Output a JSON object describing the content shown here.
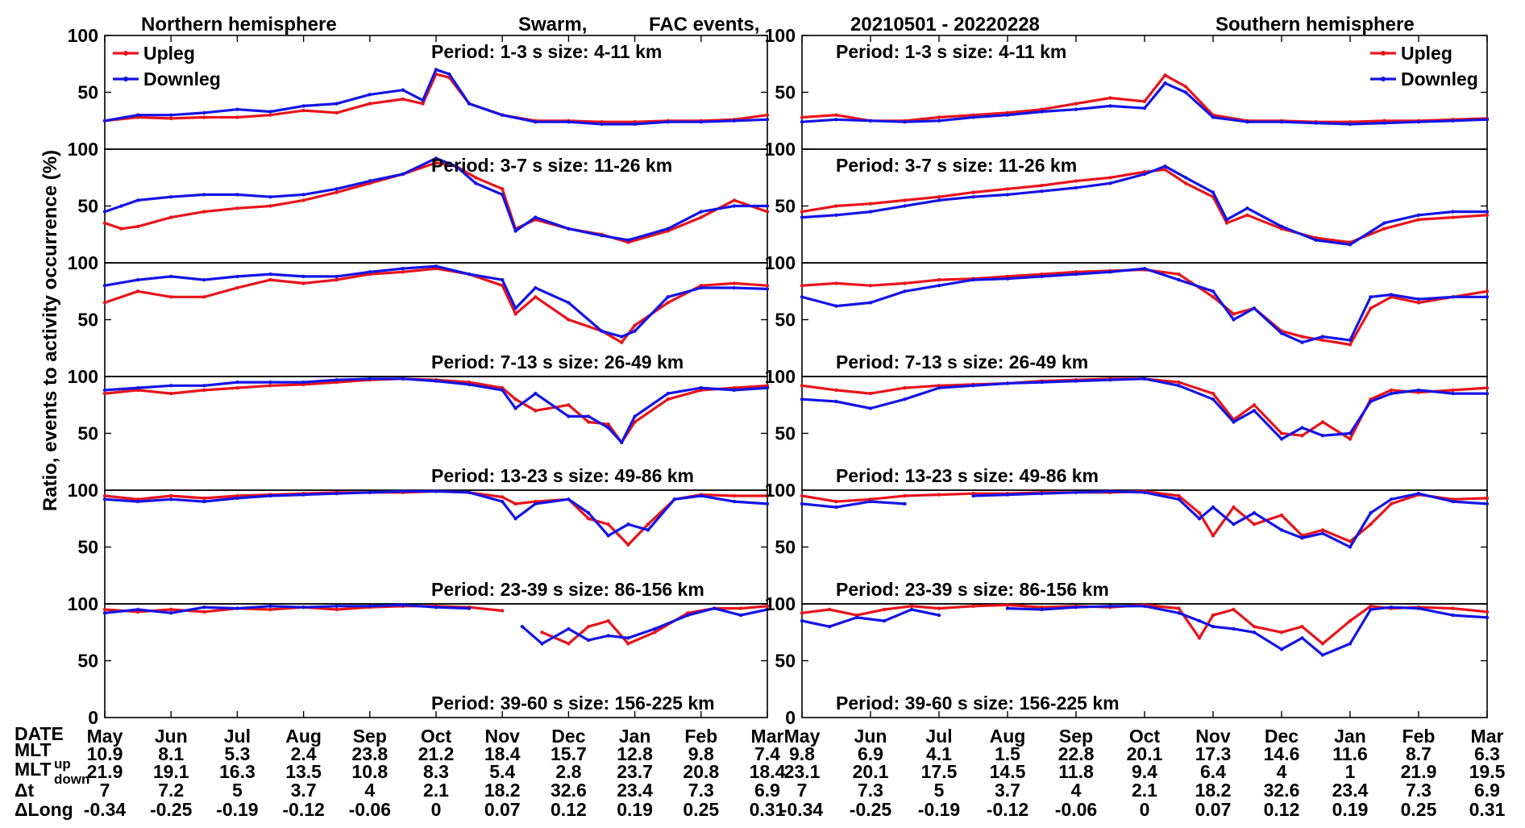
{
  "header": {
    "north_title": "Northern hemisphere",
    "mission": "Swarm,",
    "event_type": "FAC events,",
    "date_range": "20210501 - 20220228",
    "south_title": "Southern hemisphere"
  },
  "ylabel": "Ratio, events to activity occurrence (%)",
  "legend": {
    "upleg": "Upleg",
    "downleg": "Downleg"
  },
  "colors": {
    "upleg": "#e8141b",
    "downleg": "#1414e6",
    "axis": "#000000"
  },
  "ticks": {
    "y_main": [
      "100",
      "50"
    ],
    "y_zero": "0"
  },
  "bottom": {
    "row_labels": [
      "DATE",
      "MLT",
      "MLT",
      "up",
      "down",
      "Δt",
      "ΔLong"
    ],
    "months": [
      "May",
      "Jun",
      "Jul",
      "Aug",
      "Sep",
      "Oct",
      "Nov",
      "Dec",
      "Jan",
      "Feb",
      "Mar"
    ],
    "north": {
      "mlt_up": [
        "10.9",
        "8.1",
        "5.3",
        "2.4",
        "23.8",
        "21.2",
        "18.4",
        "15.7",
        "12.8",
        "9.8",
        "7.4"
      ],
      "mlt_down": [
        "21.9",
        "19.1",
        "16.3",
        "13.5",
        "10.8",
        "8.3",
        "5.4",
        "2.8",
        "23.7",
        "20.8",
        "18.4"
      ],
      "dt": [
        "7",
        "7.2",
        "5",
        "3.7",
        "4",
        "2.1",
        "18.2",
        "32.6",
        "23.4",
        "7.3",
        "6.9"
      ],
      "dlong": [
        "-0.34",
        "-0.25",
        "-0.19",
        "-0.12",
        "-0.06",
        "0",
        "0.07",
        "0.12",
        "0.19",
        "0.25",
        "0.31"
      ]
    },
    "south": {
      "mlt_up": [
        "9.8",
        "6.9",
        "4.1",
        "1.5",
        "22.8",
        "20.1",
        "17.3",
        "14.6",
        "11.6",
        "8.7",
        "6.3"
      ],
      "mlt_down": [
        "23.1",
        "20.1",
        "17.5",
        "14.5",
        "11.8",
        "9.4",
        "6.4",
        "4",
        "1",
        "21.9",
        "19.5"
      ],
      "dt": [
        "7",
        "7.3",
        "5",
        "3.7",
        "4",
        "2.1",
        "18.2",
        "32.6",
        "23.4",
        "7.3",
        "6.9"
      ],
      "dlong": [
        "-0.34",
        "-0.25",
        "-0.19",
        "-0.12",
        "-0.06",
        "0",
        "0.07",
        "0.12",
        "0.19",
        "0.25",
        "0.31"
      ]
    }
  },
  "chart_data": {
    "type": "line",
    "x_unit": "months since 2021-05-01 (0 = May 2021, 10 = Mar 2022)",
    "xlim": [
      0,
      10
    ],
    "ylim": [
      0,
      100
    ],
    "title": "Swarm, FAC events, 20210501 - 20220228",
    "xlabel": "DATE",
    "ylabel": "Ratio, events to activity occurrence (%)",
    "legend_north": "top-left",
    "legend_south": "top-right",
    "panels": [
      {
        "hemisphere": "north",
        "label": "Period: 1-3 s   size: 4-11 km",
        "label_pos": "top",
        "x": [
          0,
          0.5,
          1,
          1.5,
          2,
          2.5,
          3,
          3.5,
          4,
          4.5,
          4.8,
          5,
          5.2,
          5.5,
          6,
          6.5,
          7,
          7.5,
          8,
          8.5,
          9,
          9.5,
          10
        ],
        "upleg": [
          25,
          28,
          27,
          28,
          28,
          30,
          34,
          32,
          40,
          44,
          40,
          66,
          63,
          40,
          30,
          25,
          25,
          24,
          24,
          25,
          25,
          26,
          30
        ],
        "downleg": [
          25,
          30,
          30,
          32,
          35,
          33,
          38,
          40,
          48,
          52,
          43,
          70,
          66,
          40,
          30,
          24,
          24,
          22,
          22,
          24,
          24,
          25,
          26
        ]
      },
      {
        "hemisphere": "north",
        "label": "Period: 3-7 s   size: 11-26 km",
        "label_pos": "top",
        "x": [
          0,
          0.25,
          0.5,
          1,
          1.5,
          2,
          2.5,
          3,
          3.5,
          4,
          4.5,
          5,
          5.3,
          5.6,
          6,
          6.2,
          6.5,
          7,
          7.5,
          7.9,
          8.5,
          9,
          9.5,
          10
        ],
        "upleg": [
          35,
          30,
          32,
          40,
          45,
          48,
          50,
          55,
          62,
          70,
          78,
          88,
          85,
          75,
          65,
          30,
          38,
          30,
          25,
          18,
          28,
          40,
          55,
          45
        ],
        "downleg": [
          45,
          50,
          55,
          58,
          60,
          60,
          58,
          60,
          65,
          72,
          78,
          92,
          85,
          70,
          60,
          28,
          40,
          30,
          24,
          20,
          30,
          45,
          50,
          50
        ]
      },
      {
        "hemisphere": "north",
        "label": "Period: 7-13 s   size: 26-49 km",
        "label_pos": "bottom",
        "x": [
          0,
          0.5,
          1,
          1.5,
          2,
          2.5,
          3,
          3.5,
          4,
          4.5,
          5,
          5.5,
          6,
          6.2,
          6.5,
          7,
          7.5,
          7.8,
          8,
          8.5,
          9,
          9.5,
          10
        ],
        "upleg": [
          65,
          75,
          70,
          70,
          78,
          85,
          82,
          85,
          90,
          92,
          95,
          90,
          80,
          55,
          70,
          50,
          40,
          30,
          45,
          65,
          80,
          82,
          80
        ],
        "downleg": [
          80,
          85,
          88,
          85,
          88,
          90,
          88,
          88,
          92,
          95,
          97,
          90,
          85,
          60,
          78,
          65,
          40,
          35,
          40,
          70,
          78,
          78,
          77
        ]
      },
      {
        "hemisphere": "north",
        "label": "Period: 13-23 s   size: 49-86 km",
        "label_pos": "bottom",
        "x": [
          0,
          0.5,
          1,
          1.5,
          2,
          2.5,
          3,
          3.5,
          4,
          4.5,
          5,
          5.5,
          6,
          6.2,
          6.5,
          7,
          7.3,
          7.6,
          7.8,
          8,
          8.5,
          9,
          9.5,
          10
        ],
        "upleg": [
          85,
          88,
          85,
          88,
          90,
          92,
          93,
          95,
          97,
          98,
          97,
          95,
          90,
          80,
          70,
          75,
          60,
          58,
          42,
          60,
          80,
          88,
          90,
          92
        ],
        "downleg": [
          88,
          90,
          92,
          92,
          95,
          95,
          95,
          97,
          98,
          98,
          96,
          93,
          88,
          72,
          85,
          65,
          65,
          55,
          42,
          65,
          85,
          90,
          88,
          90
        ]
      },
      {
        "hemisphere": "north",
        "label": "Period: 23-39 s   size: 86-156 km",
        "label_pos": "bottom",
        "x": [
          0,
          0.5,
          1,
          1.5,
          2,
          2.5,
          3,
          3.5,
          4,
          4.5,
          5,
          5.5,
          6,
          6.2,
          6.5,
          7,
          7.3,
          7.6,
          7.9,
          8.2,
          8.6,
          9,
          9.5,
          10
        ],
        "upleg": [
          95,
          92,
          95,
          93,
          95,
          96,
          97,
          98,
          98,
          98,
          99,
          98,
          94,
          88,
          90,
          92,
          75,
          70,
          52,
          70,
          92,
          96,
          95,
          95
        ],
        "downleg": [
          92,
          90,
          92,
          90,
          93,
          95,
          96,
          97,
          98,
          99,
          99,
          98,
          90,
          75,
          88,
          92,
          80,
          60,
          70,
          65,
          92,
          95,
          90,
          88
        ]
      },
      {
        "hemisphere": "north",
        "label": "Period: 39-60 s   size: 156-225 km",
        "label_pos": "bottom",
        "x": [
          0,
          0.5,
          1,
          1.5,
          2,
          2.5,
          3,
          3.5,
          4,
          4.5,
          5,
          5.5,
          6,
          6.3,
          6.6,
          7,
          7.3,
          7.6,
          7.9,
          8.3,
          8.8,
          9.2,
          9.6,
          10
        ],
        "upleg": [
          95,
          93,
          95,
          93,
          96,
          95,
          97,
          95,
          97,
          98,
          98,
          97,
          94,
          null,
          75,
          65,
          80,
          85,
          65,
          75,
          92,
          96,
          96,
          98
        ],
        "downleg": [
          92,
          95,
          92,
          97,
          96,
          98,
          97,
          98,
          98,
          99,
          97,
          96,
          null,
          80,
          65,
          78,
          68,
          72,
          70,
          78,
          90,
          96,
          90,
          95
        ]
      },
      {
        "hemisphere": "south",
        "label": "Period: 1-3 s   size: 4-11 km",
        "label_pos": "top",
        "x": [
          0,
          0.5,
          1,
          1.5,
          2,
          2.5,
          3,
          3.5,
          4,
          4.5,
          5,
          5.3,
          5.6,
          6,
          6.5,
          7,
          7.5,
          8,
          8.5,
          9,
          9.5,
          10
        ],
        "upleg": [
          28,
          30,
          25,
          25,
          28,
          30,
          32,
          35,
          40,
          45,
          42,
          65,
          55,
          30,
          25,
          25,
          24,
          24,
          25,
          25,
          26,
          27
        ],
        "downleg": [
          24,
          26,
          25,
          24,
          25,
          28,
          30,
          33,
          35,
          38,
          36,
          58,
          50,
          28,
          24,
          24,
          23,
          22,
          23,
          24,
          25,
          26
        ]
      },
      {
        "hemisphere": "south",
        "label": "Period: 3-7 s   size: 11-26 km",
        "label_pos": "top",
        "x": [
          0,
          0.5,
          1,
          1.5,
          2,
          2.5,
          3,
          3.5,
          4,
          4.5,
          5,
          5.3,
          5.6,
          6,
          6.2,
          6.5,
          7,
          7.5,
          8,
          8.5,
          9,
          9.5,
          10
        ],
        "upleg": [
          45,
          50,
          52,
          55,
          58,
          62,
          65,
          68,
          72,
          75,
          80,
          82,
          70,
          58,
          35,
          42,
          30,
          22,
          18,
          30,
          38,
          40,
          42
        ],
        "downleg": [
          40,
          42,
          45,
          50,
          55,
          58,
          60,
          63,
          66,
          70,
          78,
          85,
          75,
          62,
          38,
          48,
          32,
          20,
          16,
          35,
          42,
          45,
          45
        ]
      },
      {
        "hemisphere": "south",
        "label": "Period: 7-13 s   size: 26-49 km",
        "label_pos": "bottom",
        "x": [
          0,
          0.5,
          1,
          1.5,
          2,
          2.5,
          3,
          3.5,
          4,
          4.5,
          5,
          5.5,
          6,
          6.3,
          6.6,
          7,
          7.3,
          7.6,
          8,
          8.3,
          8.6,
          9,
          9.5,
          10
        ],
        "upleg": [
          80,
          82,
          80,
          82,
          85,
          86,
          88,
          90,
          92,
          93,
          94,
          90,
          70,
          55,
          60,
          40,
          35,
          32,
          28,
          60,
          70,
          65,
          70,
          75
        ],
        "downleg": [
          70,
          62,
          65,
          75,
          80,
          85,
          86,
          88,
          90,
          92,
          95,
          85,
          75,
          50,
          60,
          38,
          30,
          35,
          32,
          70,
          72,
          68,
          70,
          70
        ]
      },
      {
        "hemisphere": "south",
        "label": "Period: 13-23 s   size: 49-86 km",
        "label_pos": "bottom",
        "x": [
          0,
          0.5,
          1,
          1.5,
          2,
          2.5,
          3,
          3.5,
          4,
          4.5,
          5,
          5.5,
          6,
          6.3,
          6.6,
          7,
          7.3,
          7.6,
          8,
          8.3,
          8.6,
          9,
          9.5,
          10
        ],
        "upleg": [
          92,
          88,
          85,
          90,
          92,
          93,
          94,
          96,
          97,
          98,
          98,
          95,
          85,
          62,
          75,
          50,
          48,
          60,
          45,
          80,
          88,
          86,
          88,
          90
        ],
        "downleg": [
          80,
          78,
          72,
          80,
          90,
          92,
          94,
          95,
          96,
          97,
          98,
          92,
          80,
          60,
          70,
          45,
          55,
          48,
          50,
          78,
          85,
          88,
          85,
          85
        ]
      },
      {
        "hemisphere": "south",
        "label": "Period: 23-39 s   size: 86-156 km",
        "label_pos": "bottom",
        "x": [
          0,
          0.5,
          1,
          1.5,
          2,
          2.5,
          3,
          3.5,
          4,
          4.5,
          5,
          5.5,
          5.8,
          6,
          6.3,
          6.6,
          7,
          7.3,
          7.6,
          8,
          8.3,
          8.6,
          9,
          9.5,
          10
        ],
        "upleg": [
          95,
          90,
          92,
          95,
          96,
          97,
          97,
          98,
          98,
          98,
          99,
          95,
          80,
          60,
          85,
          70,
          78,
          60,
          65,
          55,
          70,
          88,
          96,
          92,
          93
        ],
        "downleg": [
          88,
          85,
          90,
          88,
          null,
          95,
          96,
          97,
          98,
          99,
          98,
          92,
          75,
          85,
          70,
          80,
          65,
          58,
          62,
          50,
          80,
          92,
          97,
          90,
          88
        ]
      },
      {
        "hemisphere": "south",
        "label": "Period: 39-60 s   size: 156-225 km",
        "label_pos": "bottom",
        "x": [
          0,
          0.4,
          0.8,
          1.2,
          1.6,
          2,
          2.5,
          3,
          3.5,
          4,
          4.5,
          5,
          5.5,
          5.8,
          6,
          6.3,
          6.6,
          7,
          7.3,
          7.6,
          8,
          8.3,
          8.6,
          9,
          9.5,
          10
        ],
        "upleg": [
          92,
          95,
          90,
          95,
          98,
          96,
          98,
          99,
          97,
          98,
          97,
          99,
          96,
          70,
          90,
          95,
          80,
          75,
          80,
          65,
          85,
          98,
          96,
          97,
          96,
          93
        ],
        "downleg": [
          85,
          80,
          88,
          85,
          95,
          90,
          null,
          96,
          95,
          97,
          98,
          98,
          92,
          85,
          80,
          78,
          75,
          60,
          70,
          55,
          65,
          95,
          97,
          96,
          90,
          88
        ]
      }
    ]
  }
}
